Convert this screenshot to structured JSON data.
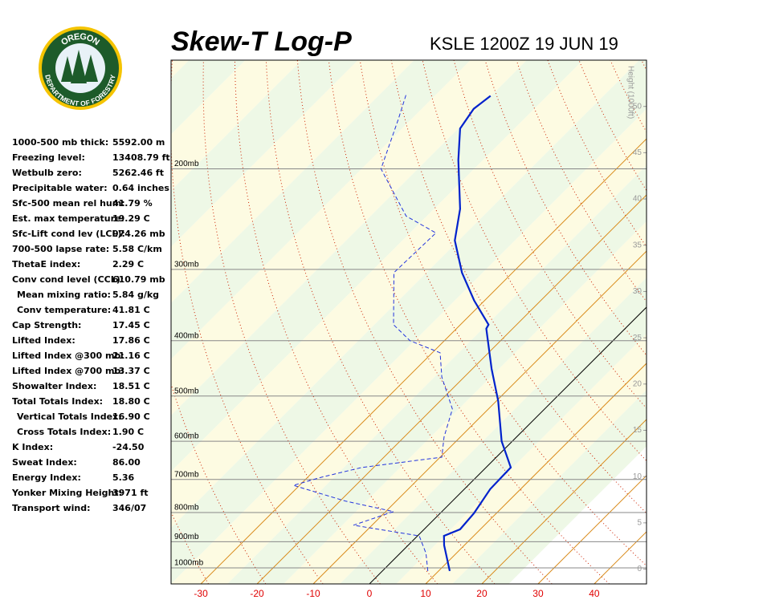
{
  "logo": {
    "top": "OREGON",
    "bottom": "DEPARTMENT OF FORESTRY"
  },
  "indices": [
    [
      "1000-500 mb thick:",
      "5592.00 m"
    ],
    [
      "Freezing level:",
      "13408.79 ft"
    ],
    [
      "Wetbulb zero:",
      "5262.46 ft"
    ],
    [
      "Precipitable water:",
      "0.64 inches"
    ],
    [
      "Sfc-500 mean rel hum:",
      "41.79 %"
    ],
    [
      "Est. max temperature:",
      "19.29 C"
    ],
    [
      "Sfc-Lift cond lev (LCL):",
      "974.26 mb"
    ],
    [
      "700-500 lapse rate:",
      "5.58 C/km"
    ],
    [
      "ThetaE index:",
      "2.29 C"
    ],
    [
      "Conv cond level (CCL):",
      "610.79 mb"
    ],
    [
      "Mean mixing ratio:",
      "5.84 g/kg"
    ],
    [
      "Conv temperature:",
      "41.81 C"
    ],
    [
      "Cap Strength:",
      "17.45 C"
    ],
    [
      "Lifted Index:",
      "17.86 C"
    ],
    [
      "Lifted Index @300 mb:",
      "21.16 C"
    ],
    [
      "Lifted Index @700 mb:",
      "13.37 C"
    ],
    [
      "Showalter Index:",
      "18.51 C"
    ],
    [
      "Total Totals Index:",
      "18.80 C"
    ],
    [
      "Vertical Totals Index:",
      "16.90 C"
    ],
    [
      "Cross Totals Index:",
      "1.90 C"
    ],
    [
      "K Index:",
      "-24.50"
    ],
    [
      "Sweat Index:",
      "86.00"
    ],
    [
      "Energy Index:",
      "5.36"
    ],
    [
      "Yonker Mixing Height:",
      "3971 ft"
    ],
    [
      "Transport wind:",
      "346/07"
    ]
  ],
  "chart_data": {
    "type": "skew-t",
    "title": "Skew-T Log-P",
    "subtitle": "KSLE 1200Z 19 JUN 19",
    "xlim": [
      -35.3,
      49.3
    ],
    "xticks": [
      -30,
      -20,
      -10,
      0,
      10,
      20,
      30,
      40
    ],
    "ylim": [
      1067,
      129
    ],
    "y_scale": "log",
    "yticks": [
      {
        "value": 1000,
        "label": "1000mb"
      },
      {
        "value": 900,
        "label": "900mb"
      },
      {
        "value": 800,
        "label": "800mb"
      },
      {
        "value": 700,
        "label": "700mb"
      },
      {
        "value": 600,
        "label": "600mb"
      },
      {
        "value": 500,
        "label": "500mb"
      },
      {
        "value": 400,
        "label": "400mb"
      },
      {
        "value": 300,
        "label": "300mb"
      },
      {
        "value": 200,
        "label": "200mb"
      }
    ],
    "y2label": "Height (1000ft)",
    "y2lim": [
      -1.6,
      55
    ],
    "y2ticks": [
      0,
      5,
      10,
      15,
      20,
      25,
      30,
      35,
      40,
      45,
      50
    ],
    "series": [
      {
        "color": "#0022cc",
        "dash": false,
        "pressure": [
          1013,
          913,
          879,
          856,
          802,
          728,
          667,
          600,
          510,
          448,
          381,
          375,
          340,
          304,
          267,
          235,
          193,
          170,
          157,
          149
        ],
        "temperature": [
          12.0,
          6.4,
          4.7,
          6.4,
          6.0,
          4.6,
          4.4,
          -1.9,
          -9.7,
          -16.6,
          -24.7,
          -25.0,
          -31.9,
          -39.0,
          -46.0,
          -50.7,
          -59.7,
          -65.0,
          -66.1,
          -65.4
        ]
      },
      {
        "color": "#2233dd",
        "dash": true,
        "pressure": [
          1013,
          943,
          879,
          842,
          797,
          764,
          717,
          694,
          667,
          640,
          590,
          527,
          463,
          420,
          400,
          375,
          304,
          259,
          242,
          200,
          164,
          148
        ],
        "temperature": [
          8.1,
          4.6,
          0.3,
          -13.3,
          -8.6,
          -19.0,
          -31.1,
          -27.6,
          -22.1,
          -9.7,
          -12.9,
          -16.4,
          -24.0,
          -28.6,
          -36.1,
          -41.9,
          -51.1,
          -50.7,
          -59.0,
          -71.9,
          -77.6,
          -80.7
        ]
      }
    ]
  }
}
